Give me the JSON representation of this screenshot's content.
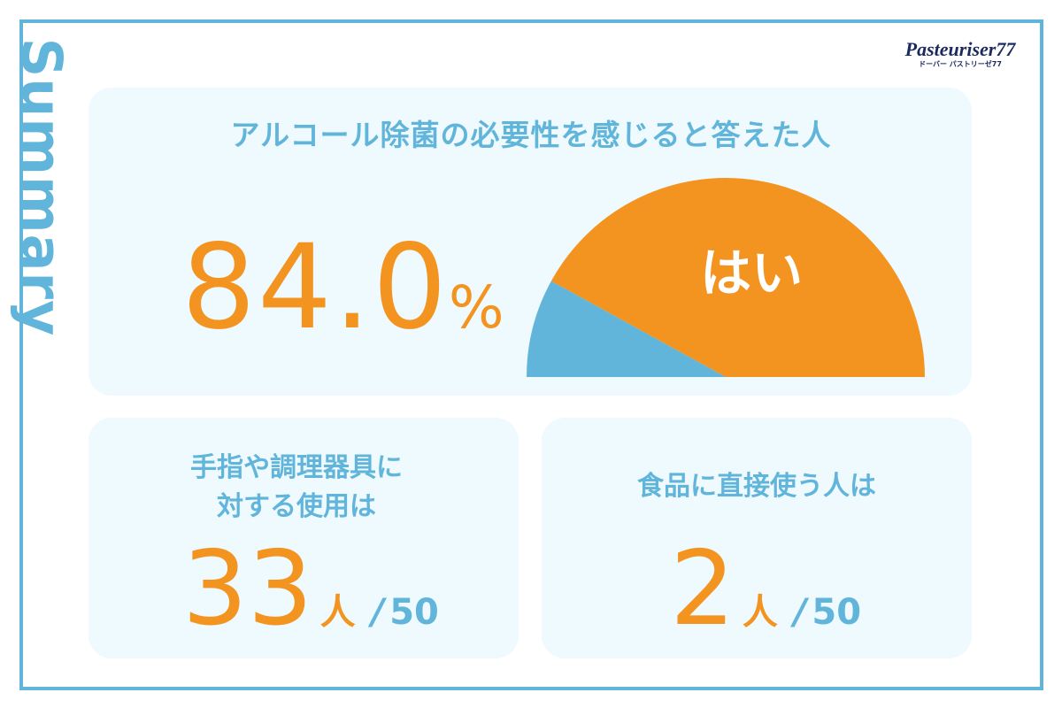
{
  "side_title": "Summary",
  "logo": {
    "main": "Pasteuriser77",
    "sub": "ドーバー パストリーゼ77"
  },
  "main_card": {
    "title": "アルコール除菌の必要性を感じると答えた人",
    "percent_value": "84.0",
    "percent_sign": "%"
  },
  "chart_data": {
    "type": "pie",
    "style": "half-donut",
    "series": [
      {
        "label": "はい",
        "value": 84.0,
        "color": "#f39421"
      },
      {
        "label": "",
        "value": 16.0,
        "color": "#62b5da"
      }
    ]
  },
  "stat_left": {
    "label_line1": "手指や調理器具に",
    "label_line2": "対する使用は",
    "count": "33",
    "unit": "人",
    "slash": "/",
    "total": "50"
  },
  "stat_right": {
    "label": "食品に直接使う人は",
    "count": "2",
    "unit": "人",
    "slash": "/",
    "total": "50"
  },
  "colors": {
    "accent_blue": "#62b5da",
    "accent_orange": "#f39421",
    "card_bg": "#eefafe",
    "logo_navy": "#1b2a5e"
  }
}
